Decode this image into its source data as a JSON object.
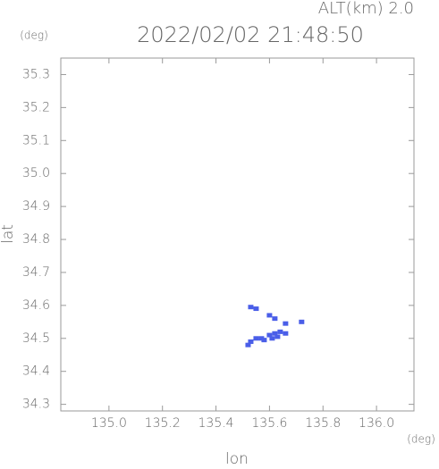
{
  "chart_data": {
    "type": "scatter",
    "title": "2022/02/02 21:48:50",
    "subtitle": "ALT(km) 2.0",
    "y_unit": "(deg)",
    "x_unit": "(deg)",
    "x_label": "lon",
    "y_label": "lat",
    "color": "#4a5ee8",
    "xlim": [
      134.82,
      136.14
    ],
    "ylim": [
      34.28,
      35.35
    ],
    "xticks": [
      {
        "value": 135,
        "label": "135.0"
      },
      135.2,
      135.4,
      135.6,
      135.8,
      {
        "value": 136,
        "label": "136.0"
      }
    ],
    "yticks": [
      34.3,
      34.4,
      34.5,
      34.6,
      34.7,
      34.8,
      34.9,
      {
        "value": 35,
        "label": "35.0"
      },
      35.1,
      35.2,
      35.3
    ],
    "x": [
      135.53,
      135.55,
      135.6,
      135.62,
      135.66,
      135.72,
      135.52,
      135.53,
      135.55,
      135.57,
      135.58,
      135.6,
      135.62,
      135.64,
      135.66,
      135.61,
      135.63
    ],
    "y": [
      34.595,
      34.59,
      34.57,
      34.56,
      34.545,
      34.55,
      34.48,
      34.49,
      34.5,
      34.5,
      34.495,
      34.51,
      34.515,
      34.52,
      34.515,
      34.5,
      34.505
    ]
  }
}
